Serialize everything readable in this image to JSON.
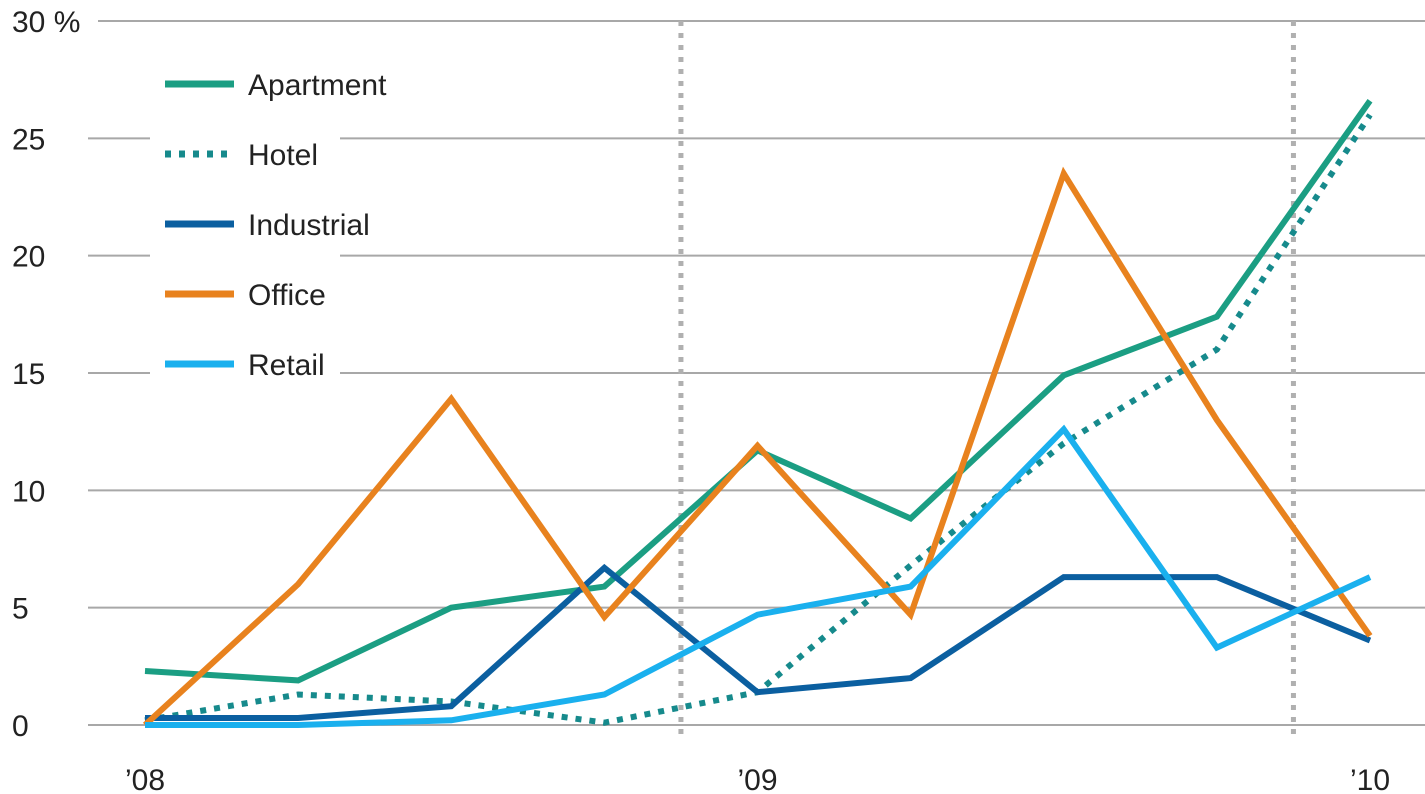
{
  "chart_data": {
    "type": "line",
    "y_unit": "%",
    "ylim": [
      0,
      30
    ],
    "y_ticks": [
      0,
      5,
      10,
      15,
      20,
      25,
      30
    ],
    "x_tick_labels": [
      "’08",
      "’09",
      "’10"
    ],
    "x_tick_positions": [
      0,
      4,
      8
    ],
    "year_dividers_at": [
      3.5,
      7.5
    ],
    "grid": true,
    "legend_position": "top-left",
    "x": [
      0,
      1,
      2,
      3,
      4,
      5,
      6,
      7,
      8
    ],
    "series": [
      {
        "name": "Apartment",
        "color": "#1b9e83",
        "dashed": false,
        "values": [
          2.3,
          1.9,
          5.0,
          5.9,
          11.7,
          8.8,
          14.9,
          17.4,
          26.6
        ]
      },
      {
        "name": "Hotel",
        "color": "#168a8c",
        "dashed": true,
        "values": [
          0.2,
          1.3,
          1.0,
          0.1,
          1.4,
          6.8,
          12.0,
          16.0,
          26.0
        ]
      },
      {
        "name": "Industrial",
        "color": "#0b5fa0",
        "dashed": false,
        "values": [
          0.3,
          0.3,
          0.8,
          6.7,
          1.4,
          2.0,
          6.3,
          6.3,
          3.6
        ]
      },
      {
        "name": "Office",
        "color": "#e8821e",
        "dashed": false,
        "values": [
          0.0,
          6.0,
          13.9,
          4.6,
          11.9,
          4.7,
          23.5,
          13.0,
          3.8
        ]
      },
      {
        "name": "Retail",
        "color": "#1ab0ee",
        "dashed": false,
        "values": [
          0.0,
          0.0,
          0.2,
          1.3,
          4.7,
          5.9,
          12.6,
          3.3,
          6.3
        ]
      }
    ]
  }
}
